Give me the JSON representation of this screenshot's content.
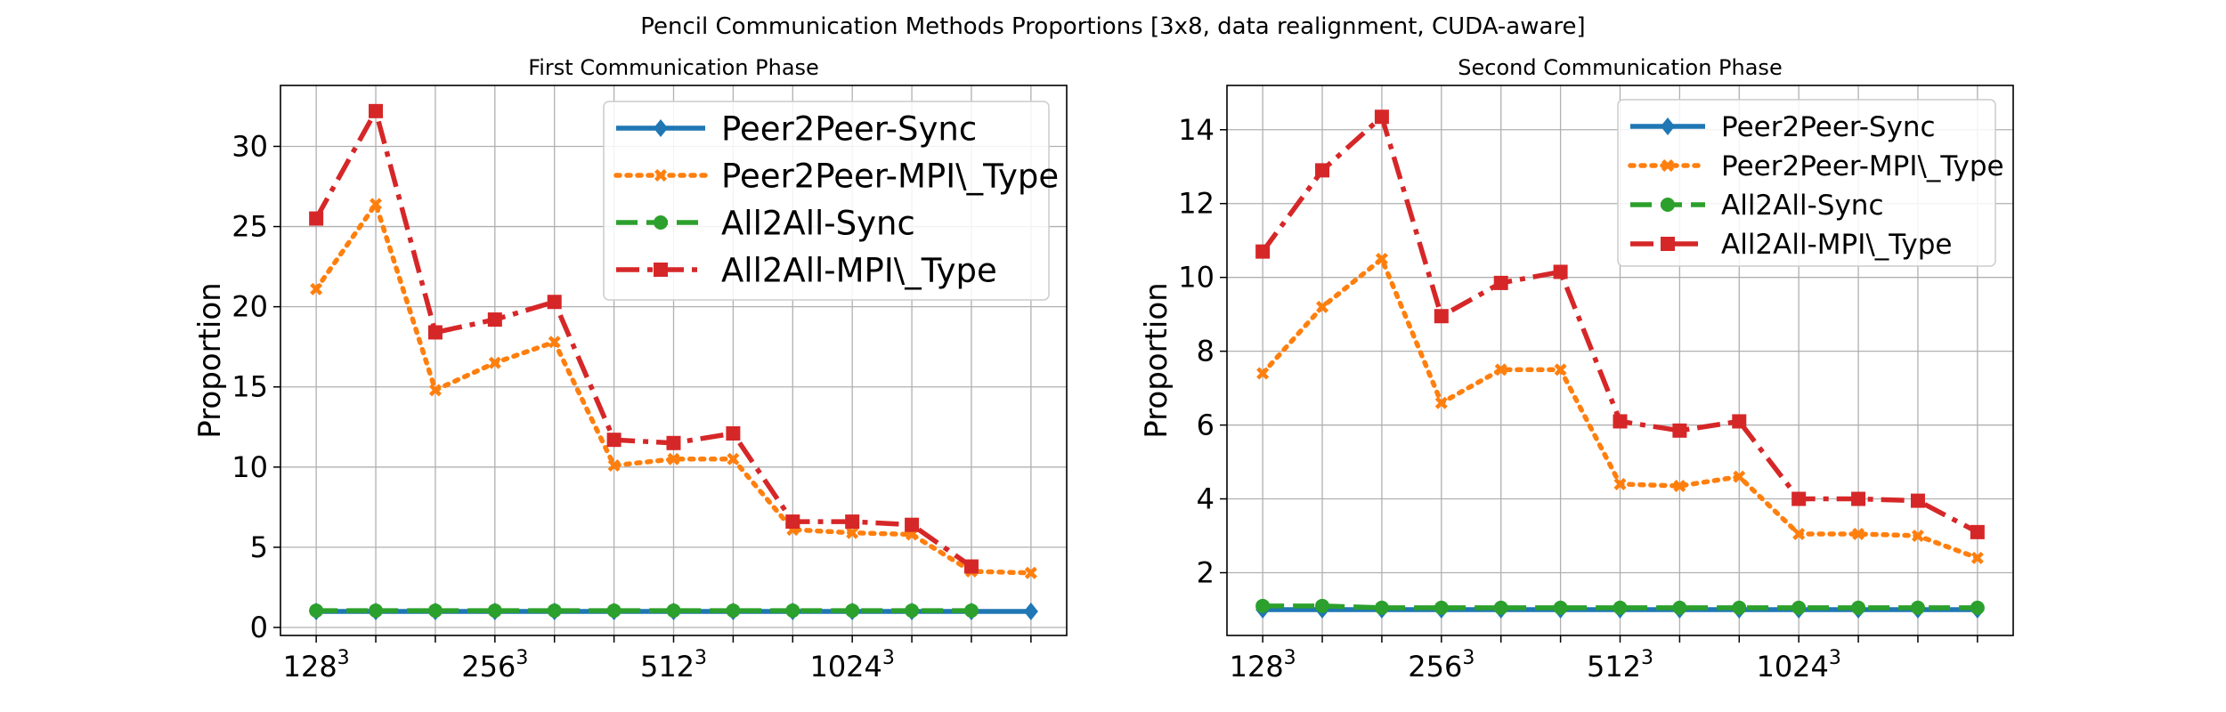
{
  "figure": {
    "suptitle": "Pencil Communication Methods Proportions [3x8, data realignment, CUDA-aware]"
  },
  "colors": {
    "Peer2Peer-Sync": "#1f77b4",
    "Peer2Peer-MPI\\_Type": "#ff7f0e",
    "All2All-Sync": "#2ca02c",
    "All2All-MPI\\_Type": "#d62728",
    "grid": "#b0b0b0"
  },
  "chart_data": [
    {
      "type": "line",
      "title": "First Communication Phase",
      "xlabel": "",
      "ylabel": "Proportion",
      "x": [
        0,
        1,
        2,
        3,
        4,
        5,
        6,
        7,
        8,
        9,
        10,
        11,
        12
      ],
      "xticks": [
        0,
        1,
        2,
        3,
        4,
        5,
        6,
        7,
        8,
        9,
        10,
        11,
        12
      ],
      "xticklabels": [
        {
          "pos": 0,
          "base": "128",
          "exp": "3"
        },
        {
          "pos": 3,
          "base": "256",
          "exp": "3"
        },
        {
          "pos": 6,
          "base": "512",
          "exp": "3"
        },
        {
          "pos": 9,
          "base": "1024",
          "exp": "3"
        }
      ],
      "xlim": [
        -0.6,
        12.6
      ],
      "ylim": [
        -0.5,
        33.8
      ],
      "yticks": [
        0,
        5,
        10,
        15,
        20,
        25,
        30
      ],
      "grid": true,
      "legend": "top-right",
      "series": [
        {
          "name": "Peer2Peer-Sync",
          "style": "solid",
          "marker": "diamond",
          "values": [
            1.0,
            1.0,
            1.0,
            1.0,
            1.0,
            1.0,
            1.0,
            1.0,
            1.0,
            1.0,
            1.0,
            1.0,
            1.0
          ]
        },
        {
          "name": "Peer2Peer-MPI\\_Type",
          "style": "dotted",
          "marker": "x",
          "values": [
            21.1,
            26.4,
            14.8,
            16.5,
            17.8,
            10.1,
            10.5,
            10.5,
            6.1,
            5.9,
            5.8,
            3.5,
            3.4
          ]
        },
        {
          "name": "All2All-Sync",
          "style": "dashed",
          "marker": "circle",
          "values": [
            1.05,
            1.05,
            1.05,
            1.05,
            1.05,
            1.05,
            1.05,
            1.05,
            1.05,
            1.05,
            1.05,
            1.05,
            null
          ]
        },
        {
          "name": "All2All-MPI\\_Type",
          "style": "dashdot",
          "marker": "square",
          "values": [
            25.5,
            32.2,
            18.4,
            19.2,
            20.3,
            11.7,
            11.5,
            12.1,
            6.6,
            6.6,
            6.4,
            3.8,
            null
          ]
        }
      ]
    },
    {
      "type": "line",
      "title": "Second Communication Phase",
      "xlabel": "",
      "ylabel": "Proportion",
      "x": [
        0,
        1,
        2,
        3,
        4,
        5,
        6,
        7,
        8,
        9,
        10,
        11,
        12
      ],
      "xticks": [
        0,
        1,
        2,
        3,
        4,
        5,
        6,
        7,
        8,
        9,
        10,
        11,
        12
      ],
      "xticklabels": [
        {
          "pos": 0,
          "base": "128",
          "exp": "3"
        },
        {
          "pos": 3,
          "base": "256",
          "exp": "3"
        },
        {
          "pos": 6,
          "base": "512",
          "exp": "3"
        },
        {
          "pos": 9,
          "base": "1024",
          "exp": "3"
        }
      ],
      "xlim": [
        -0.6,
        12.6
      ],
      "ylim": [
        0.3,
        15.2
      ],
      "yticks": [
        2,
        4,
        6,
        8,
        10,
        12,
        14
      ],
      "grid": true,
      "legend": "top-right",
      "series": [
        {
          "name": "Peer2Peer-Sync",
          "style": "solid",
          "marker": "diamond",
          "values": [
            1.0,
            1.0,
            1.0,
            1.0,
            1.0,
            1.0,
            1.0,
            1.0,
            1.0,
            1.0,
            1.0,
            1.0,
            1.0
          ]
        },
        {
          "name": "Peer2Peer-MPI\\_Type",
          "style": "dotted",
          "marker": "x",
          "values": [
            7.4,
            9.2,
            10.5,
            6.6,
            7.5,
            7.5,
            4.4,
            4.35,
            4.6,
            3.05,
            3.05,
            3.0,
            2.4
          ]
        },
        {
          "name": "All2All-Sync",
          "style": "dashed",
          "marker": "circle",
          "values": [
            1.1,
            1.1,
            1.05,
            1.05,
            1.05,
            1.05,
            1.05,
            1.05,
            1.05,
            1.05,
            1.05,
            1.05,
            1.05
          ]
        },
        {
          "name": "All2All-MPI\\_Type",
          "style": "dashdot",
          "marker": "square",
          "values": [
            10.7,
            12.9,
            14.35,
            8.95,
            9.85,
            10.15,
            6.1,
            5.85,
            6.1,
            4.0,
            4.0,
            3.95,
            3.1
          ]
        }
      ]
    }
  ]
}
